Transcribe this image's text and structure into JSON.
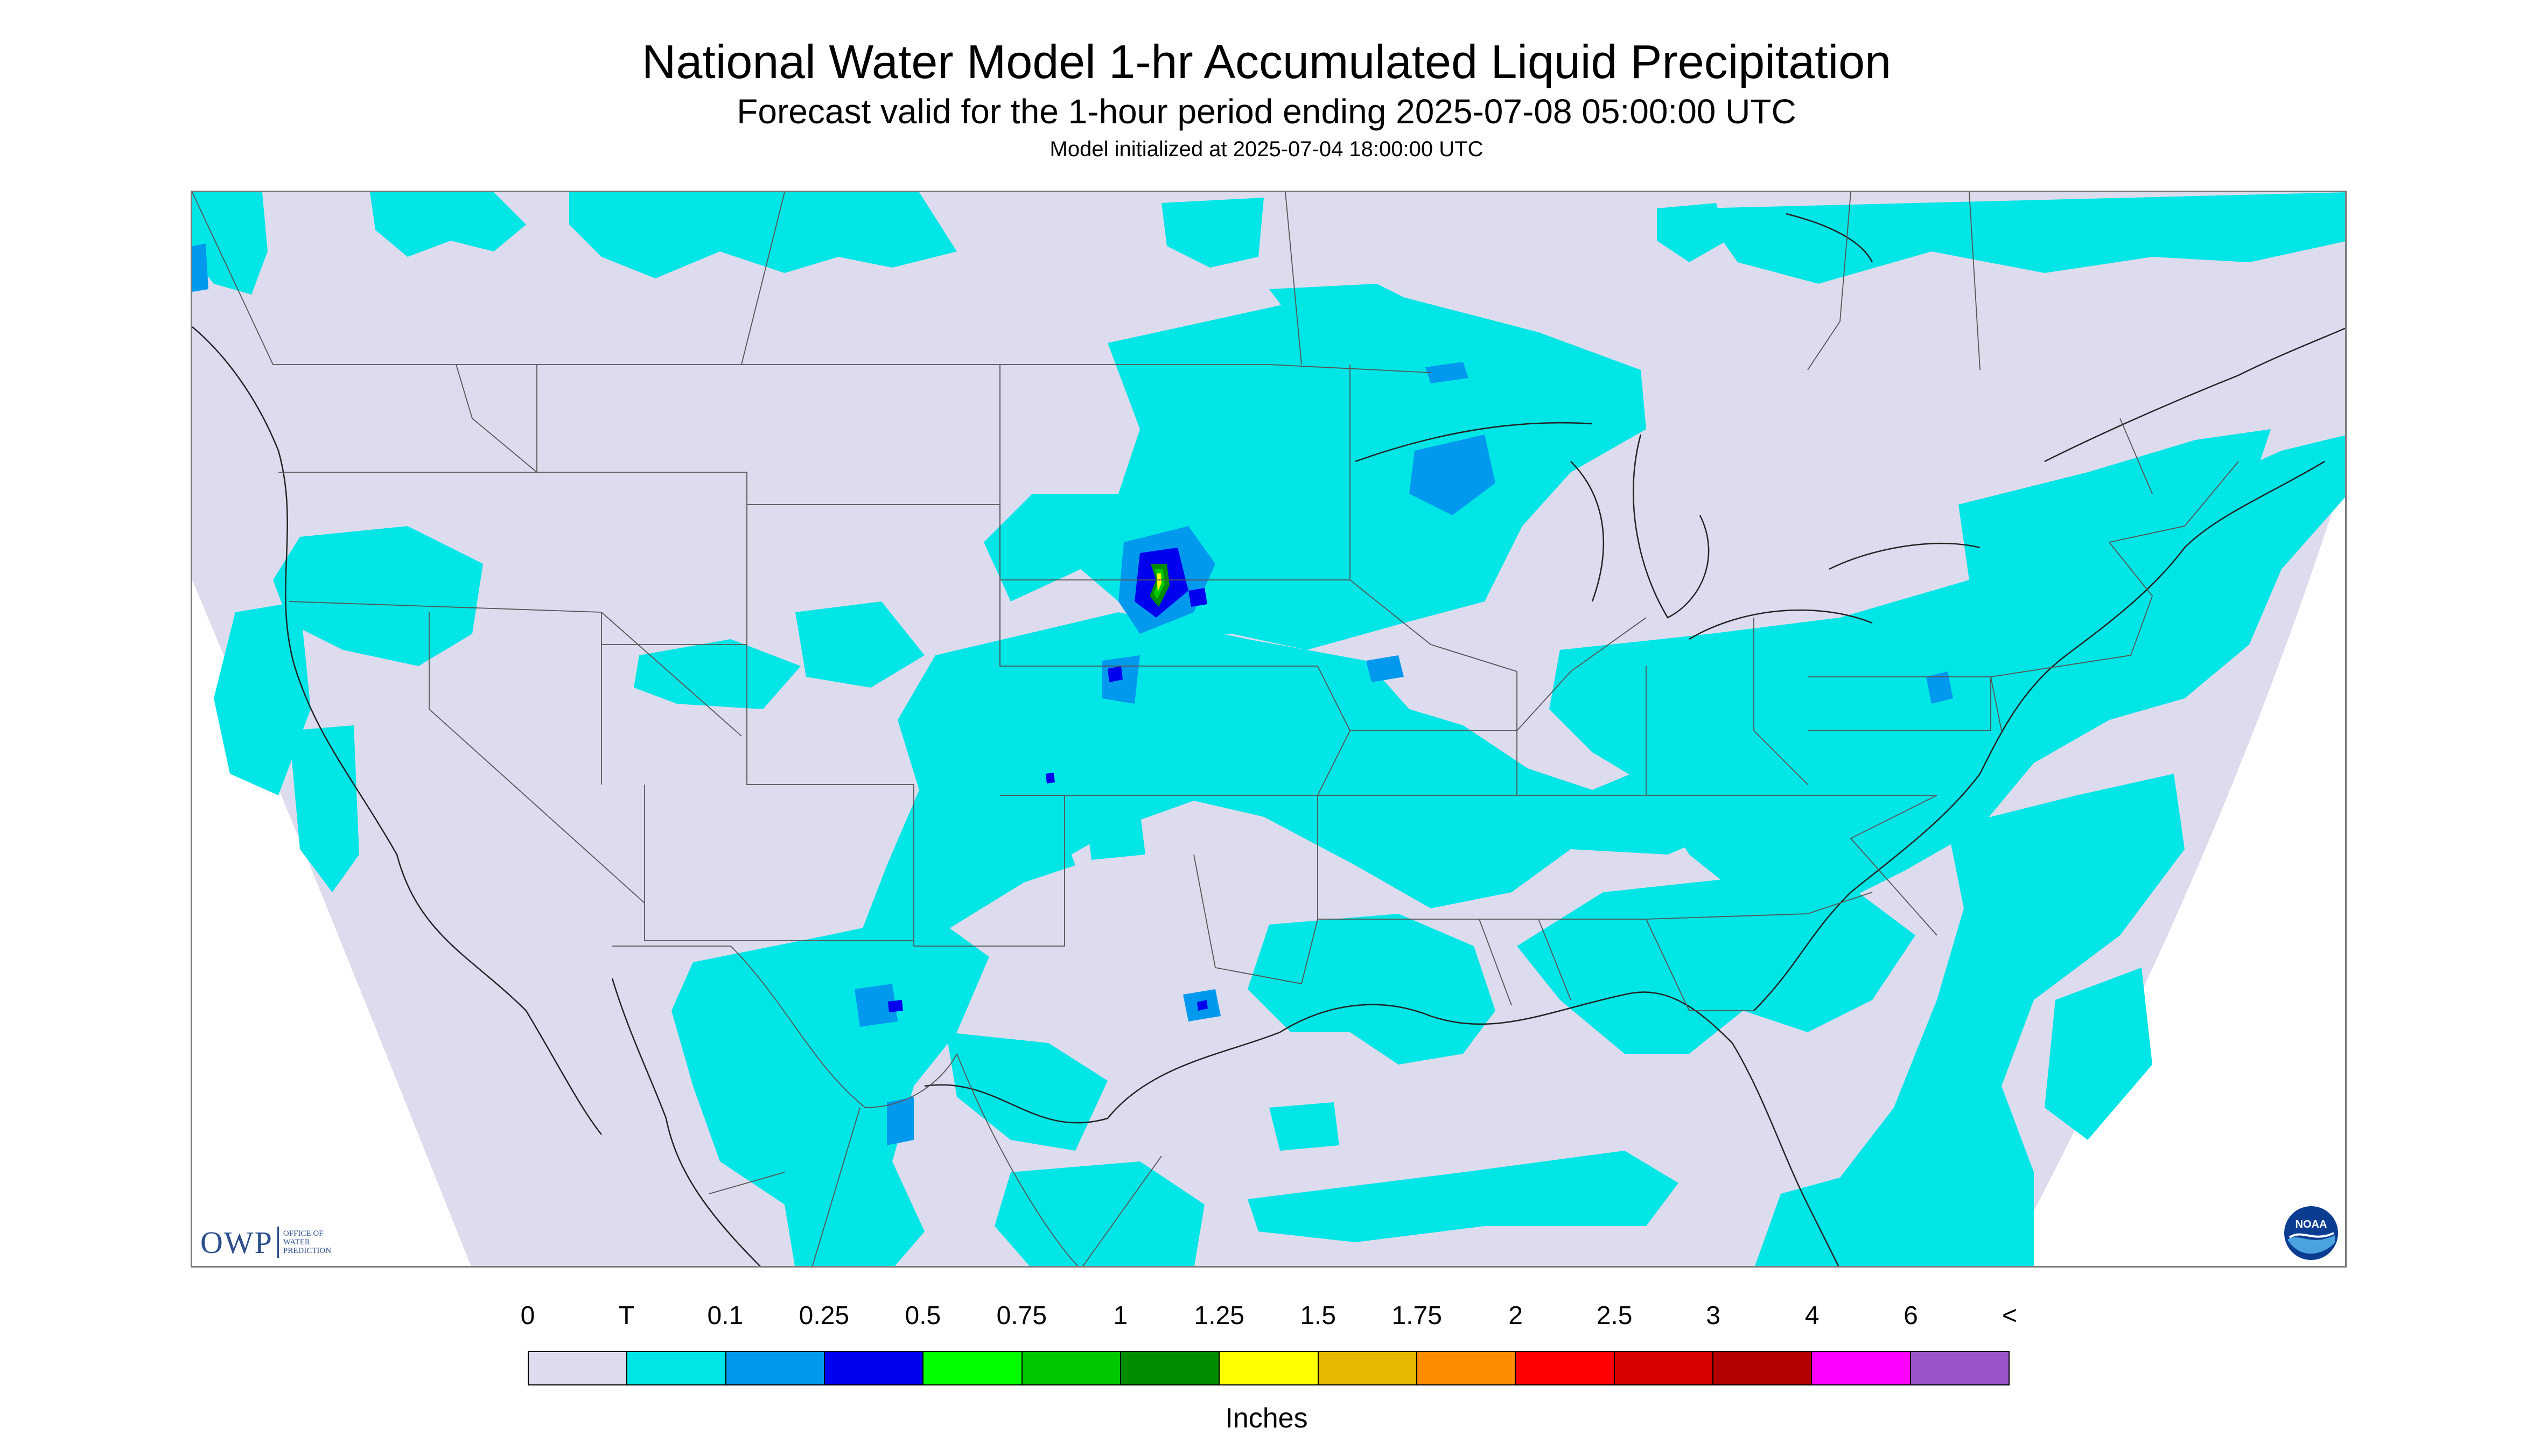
{
  "header": {
    "title": "National Water Model 1-hr Accumulated Liquid Precipitation",
    "subtitle": "Forecast valid for the 1-hour period ending 2025-07-08 05:00:00 UTC",
    "init_line": "Model initialized at 2025-07-04 18:00:00 UTC"
  },
  "logos": {
    "owp_big": "OWP",
    "owp_small_1": "OFFICE OF",
    "owp_small_2": "WATER",
    "owp_small_3": "PREDICTION",
    "noaa_text": "NOAA"
  },
  "legend": {
    "labels": [
      "0",
      "T",
      "0.1",
      "0.25",
      "0.5",
      "0.75",
      "1",
      "1.25",
      "1.5",
      "1.75",
      "2",
      "2.5",
      "3",
      "4",
      "6",
      "<"
    ],
    "colors": [
      "#dcdcee",
      "#00e5e5",
      "#0099ee",
      "#0000ee",
      "#00ff00",
      "#00c800",
      "#008c00",
      "#ffff00",
      "#e6b800",
      "#ff8c00",
      "#ff0000",
      "#d80000",
      "#b40000",
      "#ff00ff",
      "#9954c8"
    ],
    "units": "Inches"
  },
  "map": {
    "background_color": "#dcdcee",
    "precip_trace_color": "#00e5e5",
    "precip_light_color": "#0099ee",
    "precip_moderate_color": "#0000ee",
    "precip_heavy_color": "#00c800"
  }
}
